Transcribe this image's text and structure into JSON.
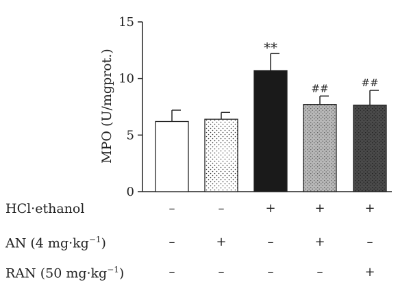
{
  "chart_data": {
    "type": "bar",
    "ylabel": "MPO (U/mgprot.)",
    "ylim": [
      0,
      15
    ],
    "yticks": [
      0,
      5,
      10,
      15
    ],
    "ytick_labels": [
      "0",
      "5",
      "10",
      "15"
    ],
    "grid": false,
    "bars": [
      {
        "value": 6.2,
        "error": 1.0,
        "fill": "white",
        "annotation": ""
      },
      {
        "value": 6.4,
        "error": 0.6,
        "fill": "sparse-dots",
        "annotation": ""
      },
      {
        "value": 10.7,
        "error": 1.5,
        "fill": "black",
        "annotation": "**"
      },
      {
        "value": 7.7,
        "error": 0.75,
        "fill": "light-gray-dots",
        "annotation": "##"
      },
      {
        "value": 7.65,
        "error": 1.3,
        "fill": "dark-gray-dots",
        "annotation": "##"
      }
    ]
  },
  "conditions": [
    {
      "label": "HCl·ethanol",
      "label_sup": "",
      "signs": [
        "–",
        "–",
        "+",
        "+",
        "+"
      ]
    },
    {
      "label": "AN (4 mg·kg",
      "label_sup": "−1",
      "label_end": ")",
      "signs": [
        "–",
        "+",
        "–",
        "+",
        "–"
      ]
    },
    {
      "label": "RAN (50 mg·kg",
      "label_sup": "−1",
      "label_end": ")",
      "signs": [
        "–",
        "–",
        "–",
        "–",
        "+"
      ]
    }
  ],
  "colors": {
    "axis": "#222222",
    "bar_black": "#1a1a1a",
    "bar_light_gray": "#b8b8b8",
    "bar_dark_gray": "#4a4a4a"
  }
}
